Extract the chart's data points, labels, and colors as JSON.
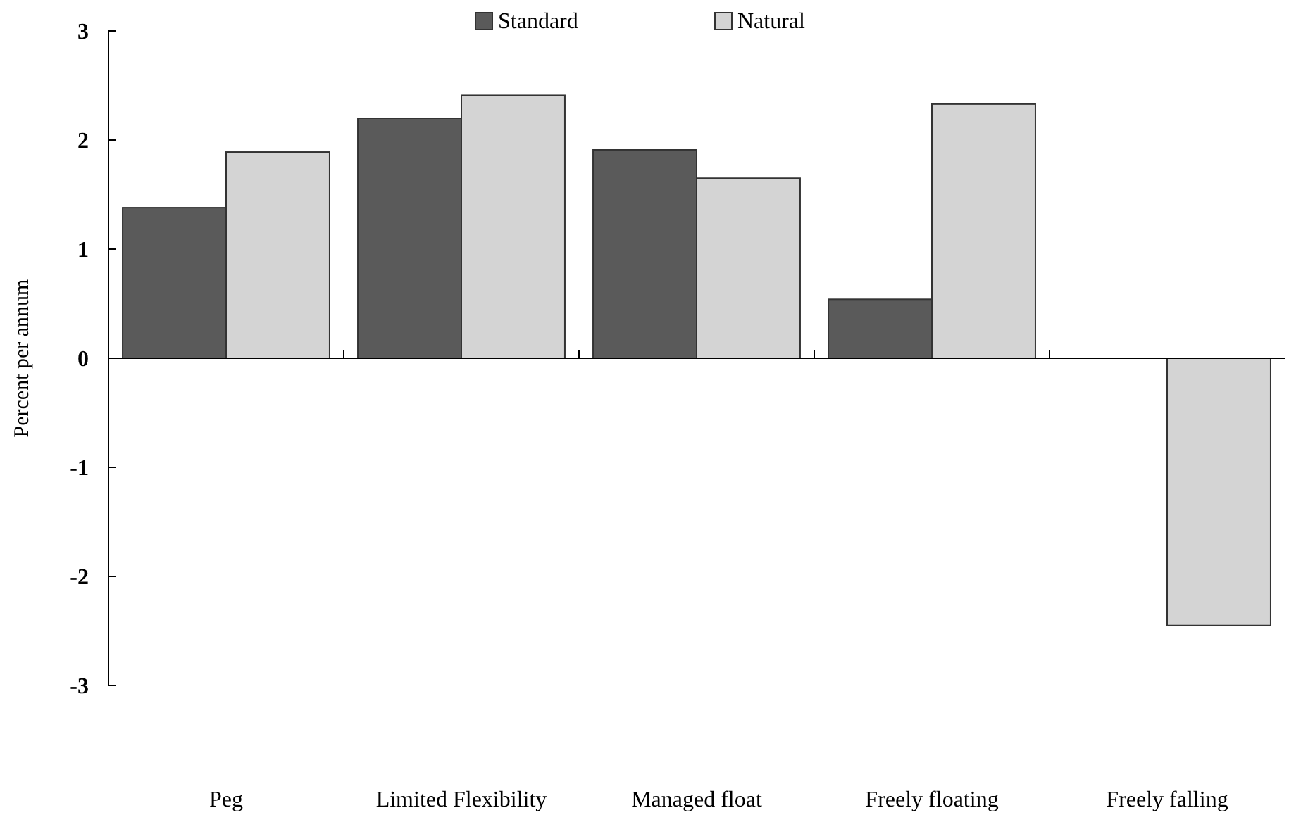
{
  "chart_data": {
    "type": "bar",
    "ylabel": "Percent per annum",
    "categories": [
      "Peg",
      "Limited Flexibility",
      "Managed float",
      "Freely floating",
      "Freely falling"
    ],
    "series": [
      {
        "name": "Standard",
        "color": "#5a5a5a",
        "values": [
          1.38,
          2.2,
          1.91,
          0.54,
          null
        ]
      },
      {
        "name": "Natural",
        "color": "#d4d4d4",
        "values": [
          1.89,
          2.41,
          1.65,
          2.33,
          -2.45
        ]
      }
    ],
    "ylim": [
      -3,
      3
    ],
    "yticks": [
      -3,
      -2,
      -1,
      0,
      1,
      2,
      3
    ],
    "legend": "top"
  }
}
